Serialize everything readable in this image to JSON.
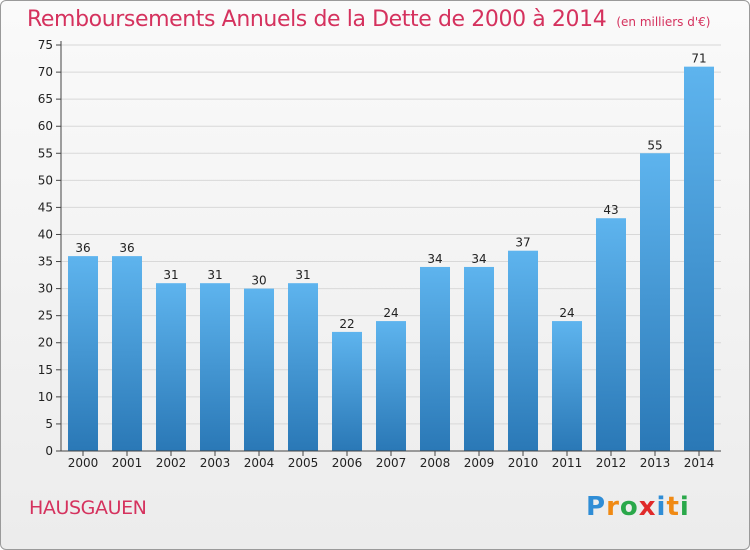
{
  "title": "Remboursements Annuels de la Dette de 2000 à 2014",
  "unit": "(en milliers d'€)",
  "commune": "HAUSGAUEN",
  "logo": {
    "text": "Proxiti",
    "letters": [
      "P",
      "r",
      "o",
      "x",
      "i",
      "t",
      "i"
    ],
    "colors": [
      "#2f8dd6",
      "#f08a14",
      "#2aa84a",
      "#e02a2a",
      "#2f8dd6",
      "#f08a14",
      "#2aa84a"
    ]
  },
  "colors": {
    "title": "#d5325e",
    "bar_top": "#5eb4ee",
    "bar_bottom": "#2a78b6",
    "grid": "#d8d8d8"
  },
  "chart_data": {
    "type": "bar",
    "categories": [
      "2000",
      "2001",
      "2002",
      "2003",
      "2004",
      "2005",
      "2006",
      "2007",
      "2008",
      "2009",
      "2010",
      "2011",
      "2012",
      "2013",
      "2014"
    ],
    "values": [
      36,
      36,
      31,
      31,
      30,
      31,
      22,
      24,
      34,
      34,
      37,
      24,
      43,
      55,
      71
    ],
    "title": "Remboursements Annuels de la Dette de 2000 à 2014",
    "xlabel": "",
    "ylabel": "",
    "ylim": [
      0,
      75
    ],
    "ytick_step": 5,
    "grid": true,
    "data_labels": true
  }
}
